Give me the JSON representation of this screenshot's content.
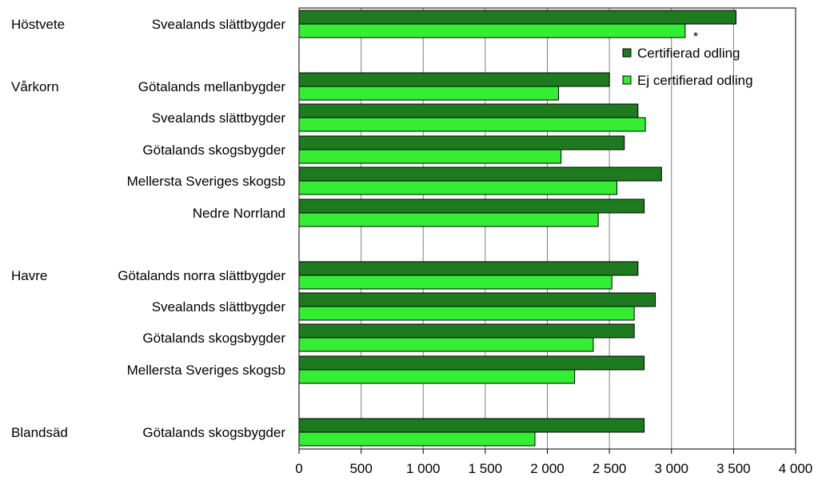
{
  "colors": {
    "certified": "#1e7a1e",
    "not_certified": "#33ee33",
    "grid": "#808080",
    "axis": "#000000"
  },
  "chart_data": {
    "type": "bar",
    "orientation": "horizontal",
    "xlim": [
      0,
      4000
    ],
    "x_ticks": [
      {
        "value": 0,
        "label": "0"
      },
      {
        "value": 500,
        "label": "500"
      },
      {
        "value": 1000,
        "label": "1 000"
      },
      {
        "value": 1500,
        "label": "1 500"
      },
      {
        "value": 2000,
        "label": "2 000"
      },
      {
        "value": 2500,
        "label": "2 500"
      },
      {
        "value": 3000,
        "label": "3 000"
      },
      {
        "value": 3500,
        "label": "3 500"
      },
      {
        "value": 4000,
        "label": "4 000"
      }
    ],
    "grid": "vertical",
    "legend_position": "top-right",
    "series": [
      {
        "name": "Certifierad odling",
        "color_key": "certified"
      },
      {
        "name": "Ej certifierad odling",
        "color_key": "not_certified"
      }
    ],
    "categories": [
      {
        "crop": "Höstvete",
        "region": "Svealands slättbygder",
        "values": [
          3520,
          3110
        ],
        "annotation": "*"
      },
      {
        "crop": "Vårkorn",
        "region": "Götalands mellanbygder",
        "values": [
          2500,
          2090
        ]
      },
      {
        "crop": "",
        "region": "Svealands slättbygder",
        "values": [
          2730,
          2790
        ]
      },
      {
        "crop": "",
        "region": "Götalands skogsbygder",
        "values": [
          2620,
          2110
        ]
      },
      {
        "crop": "",
        "region": "Mellersta Sveriges skogsb",
        "values": [
          2920,
          2560
        ]
      },
      {
        "crop": "",
        "region": "Nedre Norrland",
        "values": [
          2780,
          2410
        ]
      },
      {
        "crop": "Havre",
        "region": "Götalands norra slättbygder",
        "values": [
          2730,
          2520
        ]
      },
      {
        "crop": "",
        "region": "Svealands slättbygder",
        "values": [
          2870,
          2700
        ]
      },
      {
        "crop": "",
        "region": "Götalands skogsbygder",
        "values": [
          2700,
          2370
        ]
      },
      {
        "crop": "",
        "region": "Mellersta Sveriges skogsb",
        "values": [
          2780,
          2220
        ]
      },
      {
        "crop": "Blandsäd",
        "region": "Götalands skogsbygder",
        "values": [
          2780,
          1900
        ]
      }
    ]
  }
}
